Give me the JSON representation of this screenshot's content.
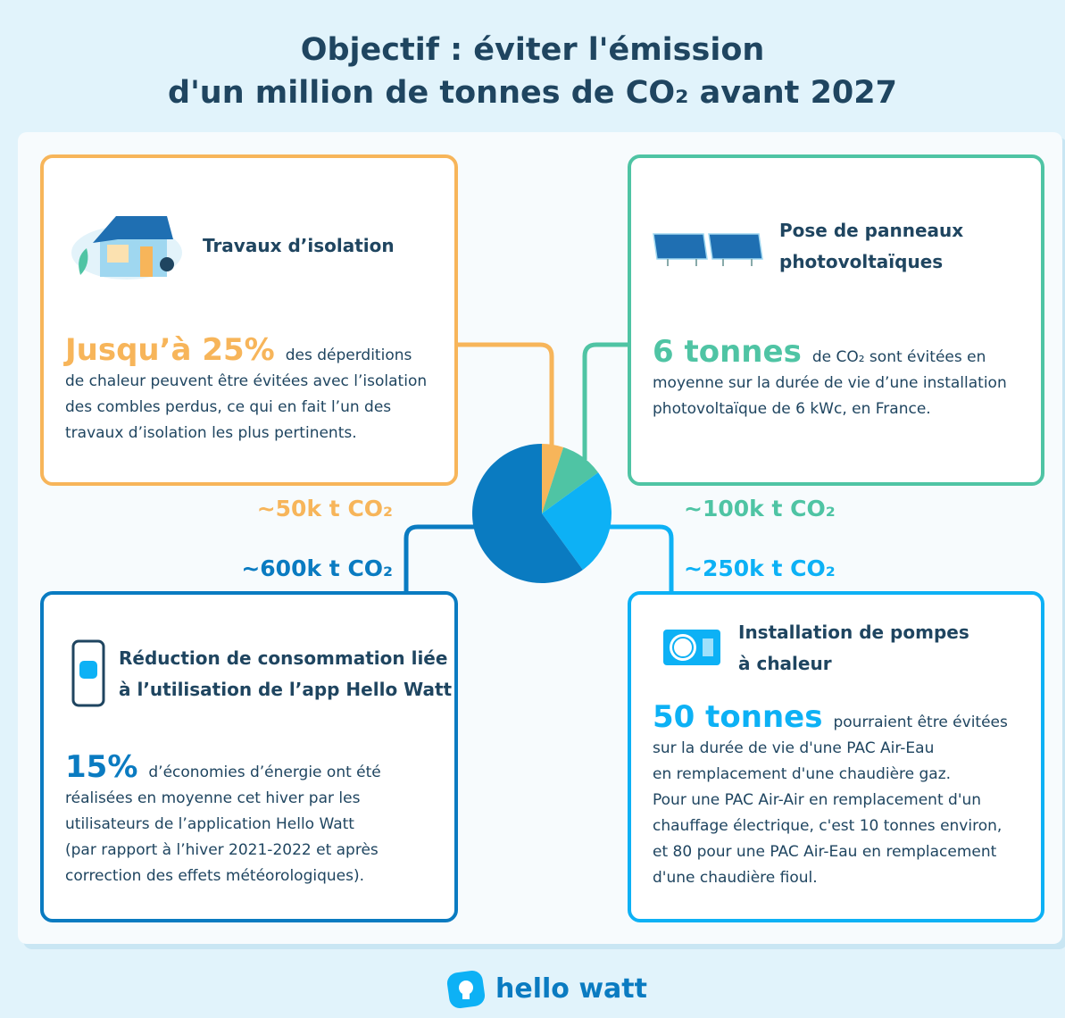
{
  "header": {
    "title_lines": [
      "Objectif : éviter l'émission",
      "d'un million de tonnes de CO₂ avant 2027"
    ]
  },
  "cards": [
    {
      "color": "#f7b55a",
      "title_lines": [
        "Travaux d’isolation"
      ],
      "highlight": "Jusqu’à 25%",
      "lead": "des déperditions",
      "body_lines": [
        "de chaleur peuvent être évitées avec l’isolation",
        "des combles perdus, ce qui en fait l’un des",
        "travaux d’isolation les plus pertinents."
      ]
    },
    {
      "color": "#4fc4a4",
      "title_lines": [
        "Pose de panneaux",
        "photovoltaïques"
      ],
      "highlight": "6 tonnes",
      "lead": "de CO₂ sont évitées en",
      "body_lines": [
        "moyenne sur la durée de vie d’une installation",
        "photovoltaïque de 6 kWc, en France."
      ]
    },
    {
      "color": "#0a7bc1",
      "title_lines": [
        "Réduction de consommation liée",
        "à l’utilisation de l’app Hello Watt"
      ],
      "highlight": "15%",
      "lead": "d’économies d’énergie ont été",
      "body_lines": [
        "réalisées en moyenne cet hiver par les",
        "utilisateurs de l’application Hello Watt",
        "(par rapport à l’hiver 2021-2022 et après",
        "correction des effets météorologiques)."
      ]
    },
    {
      "color": "#0db1f5",
      "title_lines": [
        "Installation de pompes",
        "à chaleur"
      ],
      "highlight": "50 tonnes",
      "lead": "pourraient être évitées",
      "body_lines": [
        "sur la durée de vie d'une PAC Air-Eau",
        "en remplacement d'une chaudière gaz.",
        "Pour une PAC Air-Air en remplacement d'un",
        "chauffage électrique, c'est 10 tonnes environ,",
        "et 80 pour une PAC Air-Eau en remplacement",
        "d'une chaudière fioul."
      ]
    }
  ],
  "pie": {
    "segments": [
      {
        "label": "~50k t CO₂",
        "value": 50000,
        "color": "#f7b55a"
      },
      {
        "label": "~100k t CO₂",
        "value": 100000,
        "color": "#4fc4a4"
      },
      {
        "label": "~250k t CO₂",
        "value": 250000,
        "color": "#0db1f5"
      },
      {
        "label": "~600k t CO₂",
        "value": 600000,
        "color": "#0a7bc1"
      }
    ]
  },
  "footer": {
    "logo": "hello watt"
  }
}
